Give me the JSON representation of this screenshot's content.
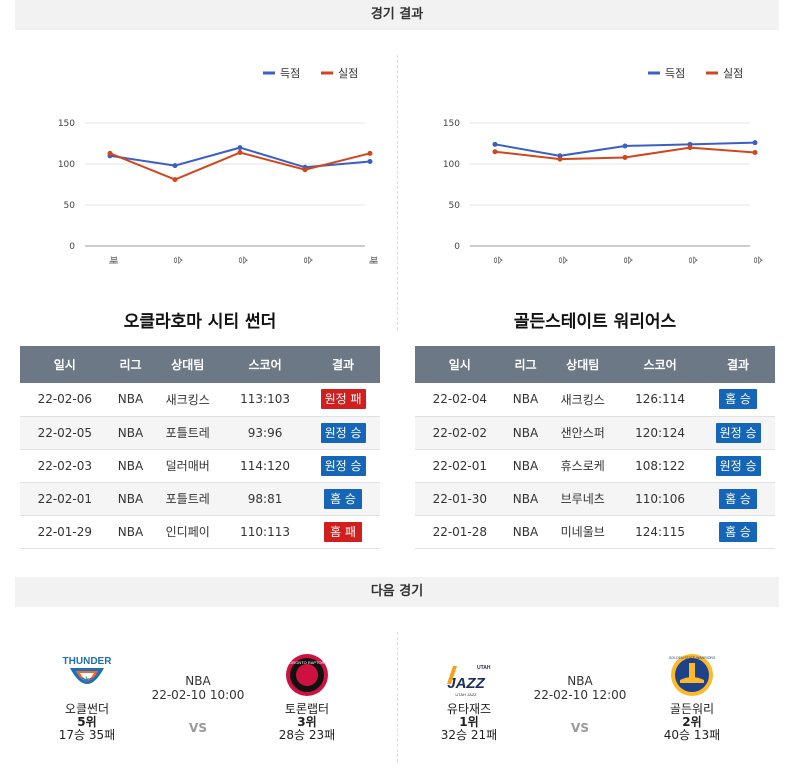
{
  "results_title": "경기 결과",
  "next_title": "다음 경기",
  "legend": {
    "scored": "득점",
    "allowed": "실점"
  },
  "colors": {
    "scored": "#3b5fc4",
    "allowed": "#d2461c",
    "win": "#1565b8",
    "loss": "#d11f1f",
    "header": "#6c7886"
  },
  "chart_data": [
    {
      "type": "line",
      "categories": [
        "패",
        "승",
        "승",
        "승",
        "패"
      ],
      "ylim": [
        0,
        150
      ],
      "yticks": [
        0,
        50,
        100,
        150
      ],
      "legend_position": "top-right",
      "series": [
        {
          "name": "득점",
          "values": [
            110,
            98,
            120,
            96,
            103
          ]
        },
        {
          "name": "실점",
          "values": [
            113,
            81,
            114,
            93,
            113
          ]
        }
      ]
    },
    {
      "type": "line",
      "categories": [
        "승",
        "승",
        "승",
        "승",
        "승"
      ],
      "ylim": [
        0,
        150
      ],
      "yticks": [
        0,
        50,
        100,
        150
      ],
      "legend_position": "top-right",
      "series": [
        {
          "name": "득점",
          "values": [
            124,
            110,
            122,
            124,
            126
          ]
        },
        {
          "name": "실점",
          "values": [
            115,
            106,
            108,
            120,
            114
          ]
        }
      ]
    }
  ],
  "table_headers": [
    "일시",
    "리그",
    "상대팀",
    "스코어",
    "결과"
  ],
  "teams": [
    {
      "name": "오클라호마 시티 썬더",
      "games": [
        {
          "date": "22-02-06",
          "league": "NBA",
          "opponent": "새크킹스",
          "score": "113:103",
          "result": "원정 패",
          "win": false
        },
        {
          "date": "22-02-05",
          "league": "NBA",
          "opponent": "포틀트레",
          "score": "93:96",
          "result": "원정 승",
          "win": true
        },
        {
          "date": "22-02-03",
          "league": "NBA",
          "opponent": "덜러매버",
          "score": "114:120",
          "result": "원정 승",
          "win": true
        },
        {
          "date": "22-02-01",
          "league": "NBA",
          "opponent": "포틀트레",
          "score": "98:81",
          "result": "홈 승",
          "win": true
        },
        {
          "date": "22-01-29",
          "league": "NBA",
          "opponent": "인디페이",
          "score": "110:113",
          "result": "홈 패",
          "win": false
        }
      ]
    },
    {
      "name": "골든스테이트 워리어스",
      "games": [
        {
          "date": "22-02-04",
          "league": "NBA",
          "opponent": "새크킹스",
          "score": "126:114",
          "result": "홈 승",
          "win": true
        },
        {
          "date": "22-02-02",
          "league": "NBA",
          "opponent": "샌안스퍼",
          "score": "120:124",
          "result": "원정 승",
          "win": true
        },
        {
          "date": "22-02-01",
          "league": "NBA",
          "opponent": "휴스로케",
          "score": "108:122",
          "result": "원정 승",
          "win": true
        },
        {
          "date": "22-01-30",
          "league": "NBA",
          "opponent": "브루네츠",
          "score": "110:106",
          "result": "홈 승",
          "win": true
        },
        {
          "date": "22-01-28",
          "league": "NBA",
          "opponent": "미네울브",
          "score": "124:115",
          "result": "홈 승",
          "win": true
        }
      ]
    }
  ],
  "matches": [
    {
      "league": "NBA",
      "datetime": "22-02-10 10:00",
      "vs": "VS",
      "home": {
        "name": "오클썬더",
        "rank": "5위",
        "record": "17승 35패",
        "logo": "thunder-logo",
        "logo_text": "THUNDER"
      },
      "away": {
        "name": "토론랩터",
        "rank": "3위",
        "record": "28승 23패",
        "logo": "raptors-logo",
        "logo_text": "TORONTO RAPTORS"
      }
    },
    {
      "league": "NBA",
      "datetime": "22-02-10 12:00",
      "vs": "VS",
      "home": {
        "name": "유타재즈",
        "rank": "1위",
        "record": "32승 21패",
        "logo": "jazz-logo",
        "logo_text": "UTAH JAZZ"
      },
      "away": {
        "name": "골든워리",
        "rank": "2위",
        "record": "40승 13패",
        "logo": "warriors-logo",
        "logo_text": "GOLDEN STATE WARRIORS"
      }
    }
  ]
}
